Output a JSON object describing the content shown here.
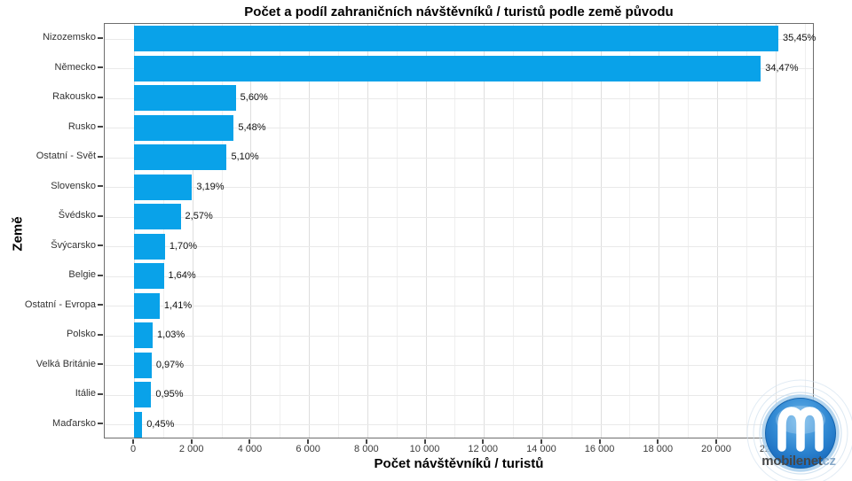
{
  "title": "Počet a podíl zahraničních návštěvníků / turistů podle země původu",
  "x_axis": {
    "title": "Počet návštěvníků / turistů",
    "tick_values": [
      0,
      2000,
      4000,
      6000,
      8000,
      10000,
      12000,
      14000,
      16000,
      18000,
      20000,
      22000
    ],
    "tick_labels": [
      "0",
      "2 000",
      "4 000",
      "6 000",
      "8 000",
      "10 000",
      "12 000",
      "14 000",
      "16 000",
      "18 000",
      "20 000",
      "22 000"
    ]
  },
  "y_axis": {
    "title": "Země"
  },
  "chart_data": {
    "type": "bar",
    "orientation": "horizontal",
    "title": "Počet a podíl zahraničních návštěvníků / turistů podle země původu",
    "xlabel": "Počet návštěvníků / turistů",
    "ylabel": "Země",
    "xlim": [
      -1000,
      23350
    ],
    "grid": true,
    "bar_color": "#09a2e9",
    "categories": [
      "Nizozemsko",
      "Německo",
      "Rakousko",
      "Rusko",
      "Ostatní - Svět",
      "Slovensko",
      "Švédsko",
      "Švýcarsko",
      "Belgie",
      "Ostatní - Evropa",
      "Polsko",
      "Velká Británie",
      "Itálie",
      "Maďarsko"
    ],
    "values": [
      22100,
      21500,
      3490,
      3420,
      3180,
      1990,
      1600,
      1060,
      1020,
      880,
      640,
      605,
      590,
      280
    ],
    "percent_labels": [
      "35,45%",
      "34,47%",
      "5,60%",
      "5,48%",
      "5,10%",
      "3,19%",
      "2,57%",
      "1,70%",
      "1,64%",
      "1,41%",
      "1,03%",
      "0,97%",
      "0,95%",
      "0,45%"
    ]
  },
  "watermark": {
    "brand": "mobilenet",
    "tld": "cz",
    "monogram": "m",
    "logo_blue": "#2f87d2"
  }
}
